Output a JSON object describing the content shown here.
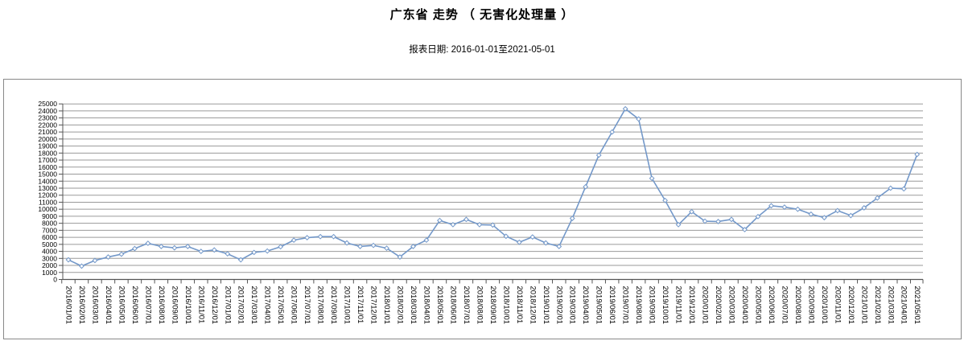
{
  "header": {
    "title": "广东省 走势 （ 无害化处理量 ）",
    "subtitle": "报表日期: 2016-01-01至2021-05-01"
  },
  "chart_data": {
    "type": "line",
    "title": "广东省 走势 （ 无害化处理量 ）",
    "subtitle": "报表日期: 2016-01-01至2021-05-01",
    "xlabel": "",
    "ylabel": "",
    "ylim": [
      0,
      25000
    ],
    "ytick_step": 1000,
    "yticks": [
      0,
      1000,
      2000,
      3000,
      4000,
      5000,
      6000,
      7000,
      8000,
      9000,
      10000,
      11000,
      12000,
      13000,
      14000,
      15000,
      16000,
      17000,
      18000,
      19000,
      20000,
      21000,
      22000,
      23000,
      24000,
      25000
    ],
    "grid": true,
    "legend_position": "none",
    "line_color": "#7398C9",
    "marker": "open-diamond",
    "marker_fill": "#ffffff",
    "grid_color": "#9a9a9a",
    "axis_color": "#555555",
    "text_color": "#000000",
    "x": [
      "2016/01/01",
      "2016/02/01",
      "2016/03/01",
      "2016/04/01",
      "2016/05/01",
      "2016/06/01",
      "2016/07/01",
      "2016/08/01",
      "2016/09/01",
      "2016/10/01",
      "2016/11/01",
      "2016/12/01",
      "2017/01/01",
      "2017/02/01",
      "2017/03/01",
      "2017/04/01",
      "2017/05/01",
      "2017/06/01",
      "2017/07/01",
      "2017/08/01",
      "2017/09/01",
      "2017/10/01",
      "2017/11/01",
      "2017/12/01",
      "2018/01/01",
      "2018/02/01",
      "2018/03/01",
      "2018/04/01",
      "2018/05/01",
      "2018/06/01",
      "2018/07/01",
      "2018/08/01",
      "2018/09/01",
      "2018/10/01",
      "2018/11/01",
      "2018/12/01",
      "2019/01/01",
      "2019/02/01",
      "2019/03/01",
      "2019/04/01",
      "2019/05/01",
      "2019/06/01",
      "2019/07/01",
      "2019/08/01",
      "2019/09/01",
      "2019/10/01",
      "2019/11/01",
      "2019/12/01",
      "2020/01/01",
      "2020/02/01",
      "2020/03/01",
      "2020/04/01",
      "2020/05/01",
      "2020/06/01",
      "2020/07/01",
      "2020/08/01",
      "2020/09/01",
      "2020/10/01",
      "2020/11/01",
      "2020/12/01",
      "2021/01/01",
      "2021/02/01",
      "2021/03/01",
      "2021/04/01",
      "2021/05/01"
    ],
    "series": [
      {
        "name": "无害化处理量",
        "values": [
          2800,
          1900,
          2700,
          3200,
          3600,
          4400,
          5150,
          4700,
          4500,
          4700,
          4000,
          4200,
          3650,
          2800,
          3850,
          4050,
          4650,
          5600,
          5950,
          6100,
          6100,
          5200,
          4700,
          4850,
          4450,
          3200,
          4700,
          5600,
          8400,
          7800,
          8550,
          7800,
          7750,
          6150,
          5300,
          6050,
          5200,
          4700,
          8700,
          13200,
          17700,
          21000,
          24300,
          22850,
          14400,
          11250,
          7800,
          9650,
          8300,
          8250,
          8550,
          7100,
          8950,
          10500,
          10300,
          10000,
          9300,
          8800,
          9800,
          9100,
          10200,
          11600,
          13000,
          12900,
          17800
        ]
      }
    ]
  }
}
